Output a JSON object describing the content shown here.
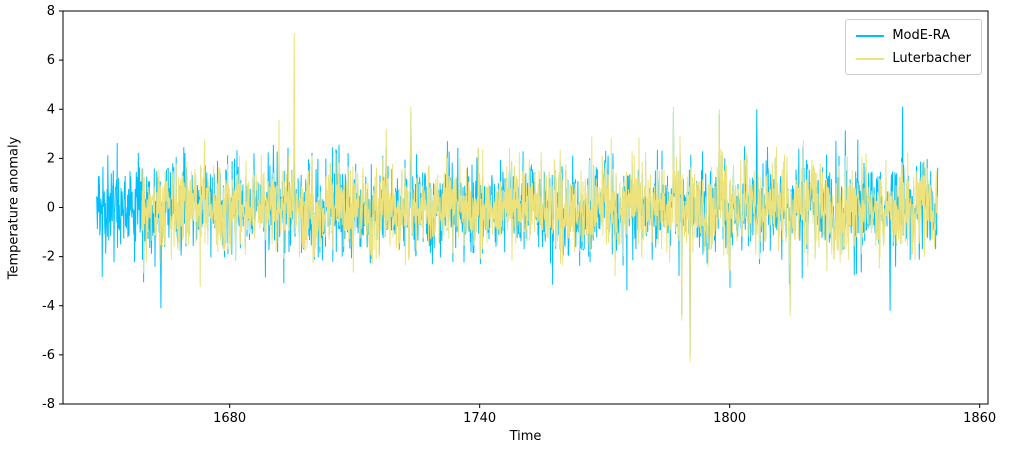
{
  "figure": {
    "background": "#ffffff",
    "legend": [
      {
        "label": "ModE-RA",
        "color": "#00bfff"
      },
      {
        "label": "Luterbacher",
        "color": "#ede27c"
      }
    ]
  },
  "chart_data": {
    "type": "line",
    "title": "",
    "xlabel": "Time",
    "ylabel": "Temperature anomaly",
    "xlim": [
      1640,
      1862
    ],
    "ylim": [
      -8,
      8
    ],
    "xticks": [
      1680,
      1740,
      1800,
      1860
    ],
    "yticks": [
      -8,
      -6,
      -4,
      -2,
      0,
      2,
      4,
      6,
      8
    ],
    "grid": false,
    "legend_position": "upper right",
    "seed": 42,
    "series": [
      {
        "name": "ModE-RA",
        "color": "#00bfff",
        "x_start": 1648,
        "x_end": 1850,
        "samples_per_year": 12,
        "mean": 0,
        "noise_std": 1.0,
        "typical_range": [
          -3,
          3
        ]
      },
      {
        "name": "Luterbacher",
        "color": "#ede27c",
        "x_start": 1659,
        "x_end": 1850,
        "samples_per_year": 12,
        "mean": 0,
        "noise_std": 0.9,
        "typical_range": [
          -2.5,
          2.5
        ]
      }
    ],
    "notable_features": [
      {
        "year": 1663,
        "series": "ModE-RA",
        "value": -4.1
      },
      {
        "year": 1695,
        "series": "Luterbacher",
        "value": 7.1
      },
      {
        "year": 1695,
        "series": "ModE-RA",
        "value": 3.4
      },
      {
        "year": 1723,
        "series": "both",
        "value": 4.1
      },
      {
        "year": 1786,
        "series": "both",
        "value": 4.1
      },
      {
        "year": 1788,
        "series": "both",
        "value": -4.6
      },
      {
        "year": 1790,
        "series": "both",
        "value": -6.3
      },
      {
        "year": 1797,
        "series": "both",
        "value": 4.0
      },
      {
        "year": 1806,
        "series": "ModE-RA",
        "value": 4.0
      },
      {
        "year": 1814,
        "series": "both",
        "value": -4.4
      },
      {
        "year": 1838,
        "series": "ModE-RA",
        "value": -4.2
      },
      {
        "year": 1841,
        "series": "ModE-RA",
        "value": 4.1
      }
    ]
  }
}
